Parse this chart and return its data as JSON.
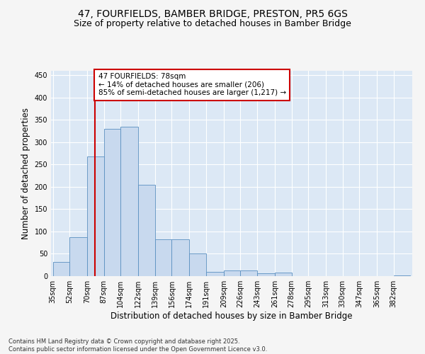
{
  "title_line1": "47, FOURFIELDS, BAMBER BRIDGE, PRESTON, PR5 6GS",
  "title_line2": "Size of property relative to detached houses in Bamber Bridge",
  "xlabel": "Distribution of detached houses by size in Bamber Bridge",
  "ylabel": "Number of detached properties",
  "bar_edges": [
    35,
    52,
    70,
    87,
    104,
    122,
    139,
    156,
    174,
    191,
    209,
    226,
    243,
    261,
    278,
    295,
    313,
    330,
    347,
    365,
    382
  ],
  "bar_heights": [
    32,
    88,
    268,
    330,
    335,
    205,
    82,
    82,
    50,
    10,
    12,
    12,
    6,
    8,
    0,
    0,
    0,
    0,
    0,
    0,
    2
  ],
  "bar_color": "#c8d9ee",
  "bar_edge_color": "#5a8fc0",
  "property_line_x": 78,
  "property_line_color": "#cc0000",
  "annotation_text": "47 FOURFIELDS: 78sqm\n← 14% of detached houses are smaller (206)\n85% of semi-detached houses are larger (1,217) →",
  "annotation_box_color": "#ffffff",
  "annotation_box_edge_color": "#cc0000",
  "ylim": [
    0,
    460
  ],
  "yticks": [
    0,
    50,
    100,
    150,
    200,
    250,
    300,
    350,
    400,
    450
  ],
  "background_color": "#dce8f5",
  "grid_color": "#ffffff",
  "fig_bg_color": "#f5f5f5",
  "footer_text": "Contains HM Land Registry data © Crown copyright and database right 2025.\nContains public sector information licensed under the Open Government Licence v3.0.",
  "title_fontsize": 10,
  "subtitle_fontsize": 9,
  "tick_fontsize": 7,
  "label_fontsize": 8.5,
  "annotation_fontsize": 7.5,
  "footer_fontsize": 6
}
